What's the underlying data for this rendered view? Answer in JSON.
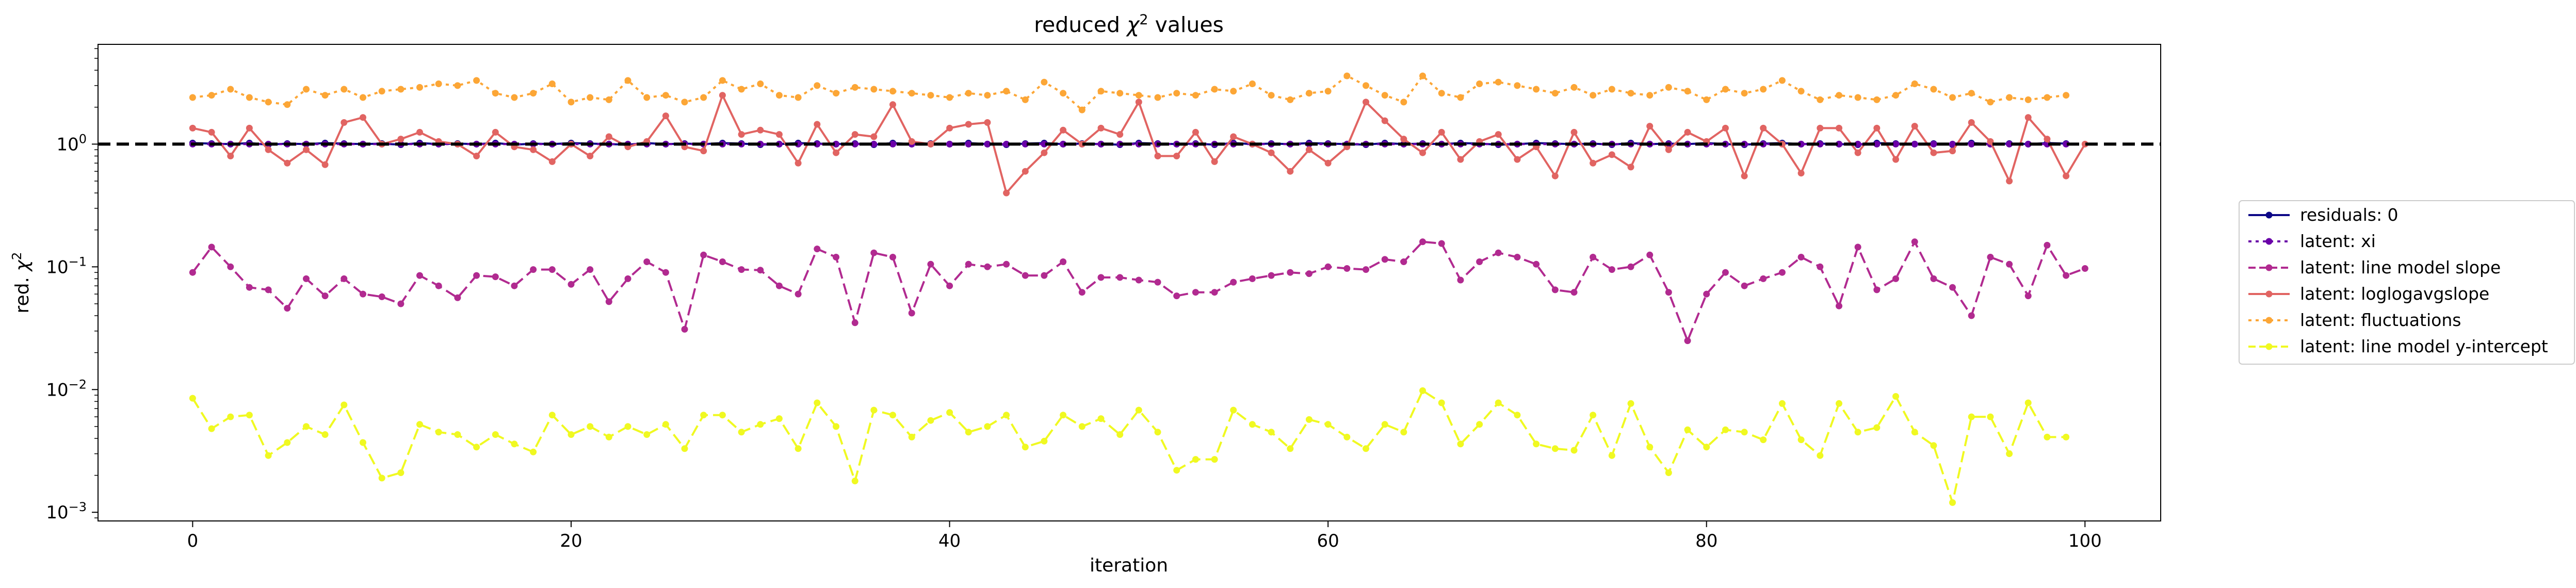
{
  "chart_data": {
    "type": "line",
    "title_prefix": "reduced ",
    "title_symbol": "χ",
    "title_power": "2",
    "title_suffix": " values",
    "xlabel": "iteration",
    "ylabel_prefix": "red. ",
    "ylabel_symbol": "χ",
    "ylabel_power": "2",
    "yscale": "log",
    "xlim": [
      -5,
      104
    ],
    "ylim": [
      0.00085,
      6.5
    ],
    "x_ticks": [
      0,
      20,
      40,
      60,
      80,
      100
    ],
    "x_tick_labels": [
      "0",
      "20",
      "40",
      "60",
      "80",
      "100"
    ],
    "y_ticks": [
      0.001,
      0.01,
      0.1,
      1
    ],
    "y_tick_labels": [
      {
        "base": "10",
        "exp": "−3"
      },
      {
        "base": "10",
        "exp": "−2"
      },
      {
        "base": "10",
        "exp": "−1"
      },
      {
        "base": "10",
        "exp": "0"
      }
    ],
    "reference_line": {
      "y": 1.0,
      "color": "#000000",
      "style": "dashed"
    },
    "legend_position": "outside-right",
    "series": [
      {
        "name": "residuals: 0",
        "color": "#0d0887",
        "dash": "solid",
        "values": [
          1.02,
          1.01,
          1.0,
          1.02,
          0.99,
          1.01,
          1.0,
          1.02,
          1.01,
          1.0,
          1.01,
          0.99,
          1.02,
          1.0,
          1.01,
          1.0,
          1.02,
          0.99,
          1.01,
          1.0,
          1.02,
          1.01,
          1.0,
          0.99,
          1.02,
          1.0,
          1.01,
          1.0,
          1.02,
          1.01,
          0.99,
          1.0,
          1.02,
          1.01,
          1.0,
          1.01,
          0.99,
          1.02,
          1.0,
          1.01,
          1.0,
          1.02,
          1.0,
          0.99,
          1.01,
          1.02,
          1.0,
          1.01,
          1.0,
          0.99,
          1.02,
          1.01,
          1.0,
          1.01,
          0.99,
          1.02,
          1.0,
          1.01,
          1.0,
          1.02,
          1.01,
          1.0,
          0.99,
          1.02,
          1.0,
          1.01,
          1.0,
          1.02,
          1.01,
          0.99,
          1.0,
          1.02,
          1.01,
          1.0,
          1.01,
          0.99,
          1.02,
          1.0,
          1.01,
          1.0,
          1.02,
          1.0,
          0.99,
          1.01,
          1.02,
          1.0,
          1.01,
          1.0,
          0.99,
          1.02,
          1.01,
          1.0,
          1.01,
          0.99,
          1.02,
          1.0,
          1.01,
          1.0,
          1.02,
          1.01
        ]
      },
      {
        "name": "latent: xi",
        "color": "#6a00a8",
        "dash": "dotted",
        "values": [
          1.0,
          1.0,
          1.0,
          1.0,
          1.0,
          1.0,
          1.0,
          1.0,
          1.0,
          1.0,
          1.0,
          1.0,
          1.0,
          1.0,
          1.0,
          1.0,
          1.0,
          1.0,
          1.0,
          1.0,
          1.0,
          1.0,
          1.0,
          1.0,
          1.0,
          1.0,
          1.0,
          1.0,
          1.0,
          1.0,
          1.0,
          1.0,
          1.0,
          1.0,
          1.0,
          1.0,
          1.0,
          1.0,
          1.0,
          1.0,
          1.0,
          1.0,
          1.0,
          1.0,
          1.0,
          1.0,
          1.0,
          1.0,
          1.0,
          1.0,
          1.0,
          1.0,
          1.0,
          1.0,
          1.0,
          1.0,
          1.0,
          1.0,
          1.0,
          1.0,
          1.0,
          1.0,
          1.0,
          1.0,
          1.0,
          1.0,
          1.0,
          1.0,
          1.0,
          1.0,
          1.0,
          1.0,
          1.0,
          1.0,
          1.0,
          1.0,
          1.0,
          1.0,
          1.0,
          1.0,
          1.0,
          1.0,
          1.0,
          1.0,
          1.0,
          1.0,
          1.0,
          1.0,
          1.0,
          1.0,
          1.0,
          1.0,
          1.0,
          1.0,
          1.0,
          1.0,
          1.0,
          1.0,
          1.0,
          1.0
        ]
      },
      {
        "name": "latent: line model slope",
        "color": "#b12a90",
        "dash": "dashed",
        "values": [
          0.09,
          0.145,
          0.1,
          0.068,
          0.065,
          0.046,
          0.08,
          0.058,
          0.08,
          0.06,
          0.057,
          0.05,
          0.085,
          0.07,
          0.056,
          0.085,
          0.083,
          0.07,
          0.095,
          0.095,
          0.072,
          0.095,
          0.052,
          0.08,
          0.11,
          0.09,
          0.031,
          0.125,
          0.11,
          0.095,
          0.094,
          0.07,
          0.06,
          0.14,
          0.12,
          0.035,
          0.13,
          0.12,
          0.042,
          0.105,
          0.07,
          0.105,
          0.1,
          0.105,
          0.085,
          0.085,
          0.11,
          0.062,
          0.082,
          0.082,
          0.078,
          0.075,
          0.058,
          0.062,
          0.062,
          0.075,
          0.08,
          0.085,
          0.09,
          0.088,
          0.1,
          0.097,
          0.095,
          0.115,
          0.11,
          0.16,
          0.155,
          0.078,
          0.11,
          0.13,
          0.12,
          0.105,
          0.065,
          0.062,
          0.12,
          0.095,
          0.1,
          0.125,
          0.062,
          0.025,
          0.06,
          0.09,
          0.07,
          0.08,
          0.09,
          0.12,
          0.1,
          0.048,
          0.145,
          0.065,
          0.08,
          0.16,
          0.08,
          0.068,
          0.04,
          0.12,
          0.105,
          0.058,
          0.15,
          0.085,
          0.097
        ]
      },
      {
        "name": "latent: loglogavgslope",
        "color": "#e16462",
        "dash": "solid",
        "values": [
          1.35,
          1.25,
          0.8,
          1.35,
          0.9,
          0.7,
          0.9,
          0.68,
          1.5,
          1.65,
          1.0,
          1.1,
          1.25,
          1.05,
          1.0,
          0.8,
          1.25,
          0.95,
          0.9,
          0.72,
          1.0,
          0.8,
          1.15,
          0.95,
          1.05,
          1.7,
          0.95,
          0.88,
          2.5,
          1.2,
          1.3,
          1.2,
          0.7,
          1.45,
          0.85,
          1.2,
          1.15,
          2.1,
          1.05,
          1.0,
          1.35,
          1.45,
          1.5,
          0.4,
          0.6,
          0.85,
          1.3,
          1.0,
          1.35,
          1.2,
          2.2,
          0.8,
          0.8,
          1.25,
          0.72,
          1.15,
          1.0,
          0.85,
          0.6,
          0.9,
          0.7,
          0.95,
          2.2,
          1.55,
          1.1,
          0.85,
          1.25,
          0.75,
          1.05,
          1.2,
          0.75,
          0.95,
          0.55,
          1.25,
          0.7,
          0.82,
          0.65,
          1.4,
          0.9,
          1.25,
          1.05,
          1.35,
          0.55,
          1.35,
          1.0,
          0.58,
          1.35,
          1.35,
          0.85,
          1.35,
          0.75,
          1.4,
          0.85,
          0.88,
          1.5,
          1.05,
          0.5,
          1.65,
          1.1,
          0.55,
          1.0
        ]
      },
      {
        "name": "latent: fluctuations",
        "color": "#fca636",
        "dash": "dotted",
        "values": [
          2.4,
          2.5,
          2.8,
          2.4,
          2.2,
          2.1,
          2.8,
          2.5,
          2.8,
          2.4,
          2.7,
          2.8,
          2.9,
          3.1,
          3.0,
          3.3,
          2.6,
          2.4,
          2.6,
          3.1,
          2.2,
          2.4,
          2.3,
          3.3,
          2.4,
          2.5,
          2.2,
          2.4,
          3.3,
          2.8,
          3.1,
          2.5,
          2.4,
          3.0,
          2.6,
          2.9,
          2.8,
          2.7,
          2.6,
          2.5,
          2.4,
          2.6,
          2.5,
          2.7,
          2.3,
          3.2,
          2.6,
          1.9,
          2.7,
          2.6,
          2.5,
          2.4,
          2.6,
          2.5,
          2.8,
          2.7,
          3.1,
          2.5,
          2.3,
          2.6,
          2.7,
          3.6,
          3.0,
          2.5,
          2.2,
          3.6,
          2.6,
          2.4,
          3.1,
          3.2,
          3.0,
          2.8,
          2.6,
          2.9,
          2.5,
          2.8,
          2.6,
          2.5,
          2.9,
          2.7,
          2.3,
          2.8,
          2.6,
          2.8,
          3.3,
          2.7,
          2.3,
          2.5,
          2.4,
          2.3,
          2.5,
          3.1,
          2.8,
          2.4,
          2.6,
          2.2,
          2.4,
          2.3,
          2.4,
          2.5
        ]
      },
      {
        "name": "latent: line model y-intercept",
        "color": "#f0f921",
        "dash": "dashed",
        "values": [
          0.0085,
          0.0048,
          0.006,
          0.0062,
          0.0029,
          0.0037,
          0.005,
          0.0043,
          0.0075,
          0.0037,
          0.0019,
          0.0021,
          0.0052,
          0.0045,
          0.0043,
          0.0034,
          0.0043,
          0.0036,
          0.0031,
          0.0062,
          0.0043,
          0.005,
          0.0041,
          0.005,
          0.0043,
          0.0052,
          0.0033,
          0.0062,
          0.0062,
          0.0045,
          0.0052,
          0.0058,
          0.0033,
          0.0078,
          0.005,
          0.0018,
          0.0068,
          0.0062,
          0.0041,
          0.0056,
          0.0065,
          0.0045,
          0.005,
          0.0062,
          0.0034,
          0.0038,
          0.0062,
          0.005,
          0.0058,
          0.0043,
          0.0068,
          0.0045,
          0.0022,
          0.0027,
          0.0027,
          0.0068,
          0.0052,
          0.0045,
          0.0033,
          0.0057,
          0.0052,
          0.0041,
          0.0033,
          0.0052,
          0.0045,
          0.0098,
          0.0078,
          0.0036,
          0.0052,
          0.0078,
          0.0062,
          0.0036,
          0.0033,
          0.0032,
          0.0062,
          0.0029,
          0.0077,
          0.0034,
          0.0021,
          0.0047,
          0.0034,
          0.0047,
          0.0045,
          0.0039,
          0.0077,
          0.0039,
          0.0029,
          0.0077,
          0.0045,
          0.0049,
          0.0088,
          0.0045,
          0.0035,
          0.0012,
          0.006,
          0.006,
          0.003,
          0.0078,
          0.0041,
          0.0041
        ]
      }
    ]
  }
}
